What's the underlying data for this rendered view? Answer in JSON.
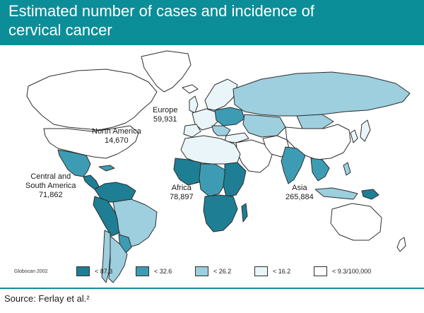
{
  "title_line1": "Estimated number of cases and incidence of",
  "title_line2": "cervical cancer",
  "regions": {
    "north_america": {
      "name": "North America",
      "cases": "14,670"
    },
    "europe": {
      "name": "Europe",
      "cases": "59,931"
    },
    "central_south_america": {
      "name_line1": "Central and",
      "name_line2": "South America",
      "cases": "71,862"
    },
    "africa": {
      "name": "Africa",
      "cases": "78,897"
    },
    "asia": {
      "name": "Asia",
      "cases": "265,884"
    }
  },
  "legend": {
    "source": "Globocan 2002",
    "items": [
      {
        "label": "< 87.3",
        "color": "#1e7e93"
      },
      {
        "label": "< 32.6",
        "color": "#3d9cb4"
      },
      {
        "label": "< 26.2",
        "color": "#9dcfde"
      },
      {
        "label": "< 16.2",
        "color": "#e9f5f9"
      },
      {
        "label": "< 9.3/100,000",
        "color": "#ffffff"
      }
    ]
  },
  "source_note": "Source: Ferlay et al.²",
  "colors": {
    "header_bg": "#0c8e98",
    "ocean": "#ffffff",
    "outline": "#2d2d2d"
  }
}
